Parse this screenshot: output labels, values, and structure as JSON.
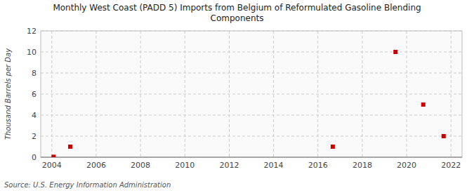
{
  "chart_data": {
    "type": "scatter",
    "title": "Monthly West Coast (PADD 5) Imports from Belgium of Reformulated Gasoline Blending\nComponents",
    "y_label": "Thousand Barrels per Day",
    "source": "Source: U.S. Energy Information Administration",
    "x": [
      2004.08,
      2004.83,
      2016.67,
      2019.5,
      2020.75,
      2021.67
    ],
    "values": [
      0.04,
      1.0,
      1.0,
      10.0,
      5.0,
      2.0
    ],
    "color": "#cc0000",
    "marker": "square",
    "xlim": [
      2003.5,
      2022.5
    ],
    "ylim": [
      0,
      12
    ],
    "xticks": [
      2004,
      2006,
      2008,
      2010,
      2012,
      2014,
      2016,
      2018,
      2020,
      2022
    ],
    "yticks": [
      0,
      2,
      4,
      6,
      8,
      10,
      12
    ],
    "grid": true
  }
}
